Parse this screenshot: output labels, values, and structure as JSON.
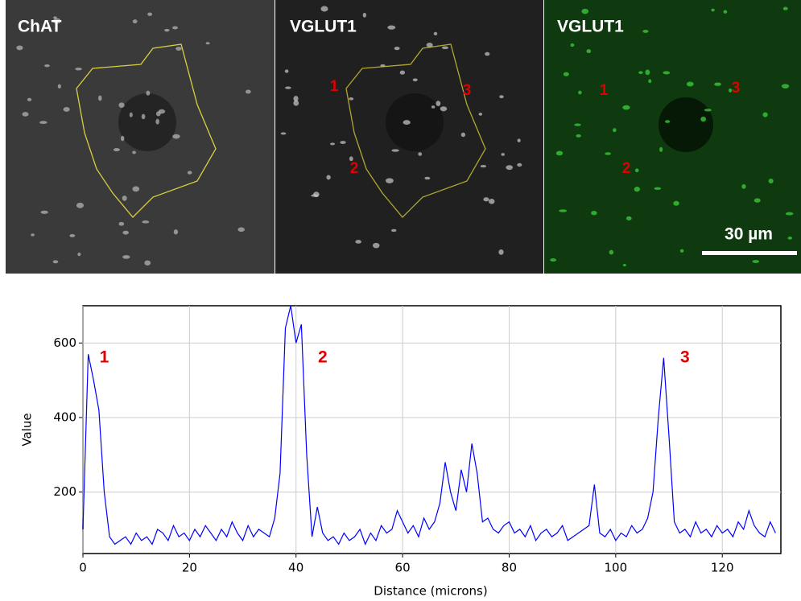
{
  "panels": [
    {
      "title": "ChAT"
    },
    {
      "title": "VGLUT1",
      "markers": [
        "1",
        "2",
        "3"
      ]
    },
    {
      "title": "VGLUT1",
      "markers": [
        "1",
        "2",
        "3"
      ],
      "scale_bar": "30 µm"
    }
  ],
  "chart_data": {
    "type": "line",
    "x_label": "Distance (microns)",
    "y_label": "Value",
    "x": [
      0,
      1,
      2,
      3,
      4,
      5,
      6,
      7,
      8,
      9,
      10,
      11,
      12,
      13,
      14,
      15,
      16,
      17,
      18,
      19,
      20,
      21,
      22,
      23,
      24,
      25,
      26,
      27,
      28,
      29,
      30,
      31,
      32,
      33,
      34,
      35,
      36,
      37,
      38,
      39,
      40,
      41,
      42,
      43,
      44,
      45,
      46,
      47,
      48,
      49,
      50,
      51,
      52,
      53,
      54,
      55,
      56,
      57,
      58,
      59,
      60,
      61,
      62,
      63,
      64,
      65,
      66,
      67,
      68,
      69,
      70,
      71,
      72,
      73,
      74,
      75,
      76,
      77,
      78,
      79,
      80,
      81,
      82,
      83,
      84,
      85,
      86,
      87,
      88,
      89,
      90,
      91,
      92,
      93,
      94,
      95,
      96,
      97,
      98,
      99,
      100,
      101,
      102,
      103,
      104,
      105,
      106,
      107,
      108,
      109,
      110,
      111,
      112,
      113,
      114,
      115,
      116,
      117,
      118,
      119,
      120,
      121,
      122,
      123,
      124,
      125,
      126,
      127,
      128,
      129,
      130
    ],
    "series": [
      {
        "color": "#0000ff",
        "values": [
          100,
          570,
          500,
          420,
          200,
          80,
          60,
          70,
          80,
          60,
          90,
          70,
          80,
          60,
          100,
          90,
          70,
          110,
          80,
          90,
          70,
          100,
          80,
          110,
          90,
          70,
          100,
          80,
          120,
          90,
          70,
          110,
          80,
          100,
          90,
          80,
          130,
          250,
          640,
          700,
          600,
          650,
          300,
          80,
          160,
          90,
          70,
          80,
          60,
          90,
          70,
          80,
          100,
          60,
          90,
          70,
          110,
          90,
          100,
          150,
          120,
          90,
          110,
          80,
          130,
          100,
          120,
          170,
          280,
          200,
          150,
          260,
          200,
          330,
          250,
          120,
          130,
          100,
          90,
          110,
          120,
          90,
          100,
          80,
          110,
          70,
          90,
          100,
          80,
          90,
          110,
          70,
          80,
          90,
          100,
          110,
          220,
          90,
          80,
          100,
          70,
          90,
          80,
          110,
          90,
          100,
          130,
          200,
          400,
          560,
          350,
          120,
          90,
          100,
          80,
          120,
          90,
          100,
          80,
          110,
          90,
          100,
          80,
          120,
          100,
          150,
          110,
          90,
          80,
          120,
          90
        ]
      }
    ],
    "annotations": [
      {
        "text": "1",
        "x": 4,
        "y": 560
      },
      {
        "text": "2",
        "x": 45,
        "y": 560
      },
      {
        "text": "3",
        "x": 113,
        "y": 560
      }
    ],
    "xlim": [
      0,
      131
    ],
    "ylim": [
      35,
      700
    ],
    "xticks": [
      0,
      20,
      40,
      60,
      80,
      100,
      120
    ],
    "yticks": [
      200,
      400,
      600
    ],
    "grid": true
  }
}
